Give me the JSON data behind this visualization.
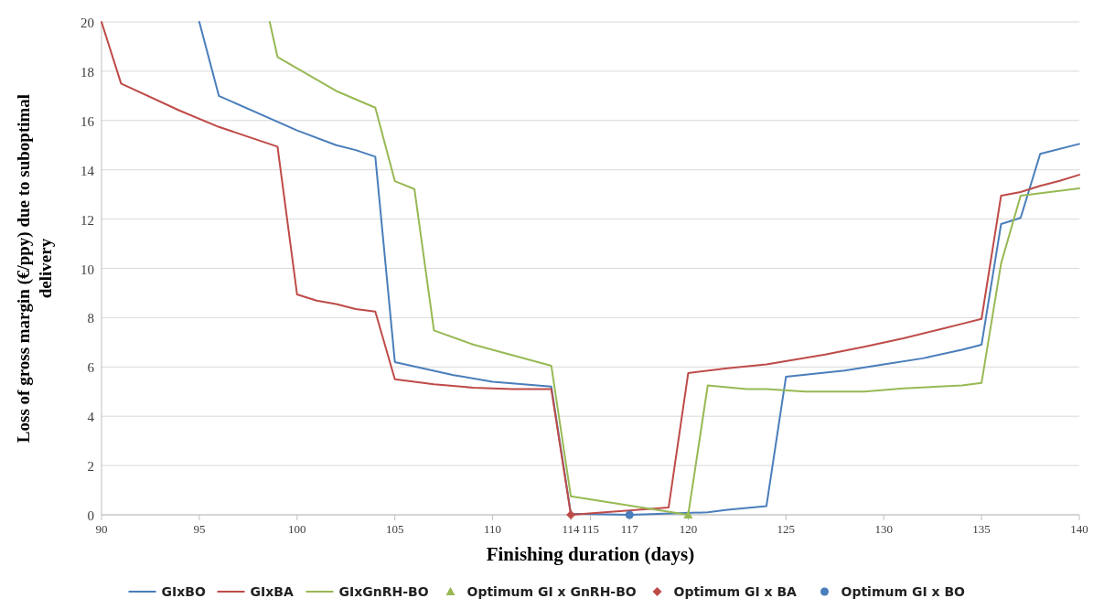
{
  "chart_data": {
    "type": "line",
    "xlabel": "Finishing duration (days)",
    "ylabel": "Loss of gross margin (€/ppy) due to suboptimal delivery",
    "xlim": [
      90,
      140
    ],
    "xticks": [
      90,
      95,
      100,
      105,
      110,
      114,
      115,
      117,
      120,
      125,
      130,
      135,
      140
    ],
    "ylim": [
      0,
      20
    ],
    "yticks": [
      0,
      2,
      4,
      6,
      8,
      10,
      12,
      14,
      16,
      18,
      20
    ],
    "grid": "y",
    "legend": "bottom",
    "line_style": "solid",
    "series": [
      {
        "name": "GIxBO",
        "color": "#4a7ebb",
        "marker": "none",
        "x": [
          95,
          96,
          100,
          102,
          103,
          104,
          105,
          108,
          110,
          113,
          114,
          117,
          121,
          122,
          124,
          125,
          128,
          130,
          132,
          134,
          135,
          136,
          137,
          138,
          140
        ],
        "values": [
          20,
          17,
          15.6,
          15.0,
          14.8,
          14.53,
          6.2,
          5.67,
          5.4,
          5.2,
          0.05,
          0,
          0.1,
          0.2,
          0.35,
          5.6,
          5.85,
          6.1,
          6.35,
          6.7,
          6.9,
          11.8,
          12.05,
          14.65,
          15.05
        ]
      },
      {
        "name": "GIxBA",
        "color": "#be4b48",
        "marker": "none",
        "x": [
          90,
          91,
          94,
          96,
          99,
          100,
          101,
          102,
          103,
          104,
          105,
          107,
          109,
          111,
          113,
          114,
          119,
          120,
          122,
          124,
          127,
          129,
          131,
          133,
          134,
          135,
          136,
          137,
          138,
          139,
          140
        ],
        "values": [
          20,
          17.5,
          16.4,
          15.74,
          14.94,
          8.94,
          8.69,
          8.55,
          8.35,
          8.25,
          5.5,
          5.3,
          5.16,
          5.1,
          5.1,
          0,
          0.3,
          5.75,
          5.95,
          6.1,
          6.5,
          6.82,
          7.16,
          7.55,
          7.75,
          7.95,
          12.95,
          13.1,
          13.35,
          13.55,
          13.8
        ]
      },
      {
        "name": "GIxGnRH-BO",
        "color": "#98b954",
        "marker": "none",
        "x": [
          98.6,
          99,
          102,
          104,
          105,
          106,
          107,
          109,
          113,
          114,
          120,
          121,
          123,
          124,
          126,
          129,
          131,
          134,
          135,
          136,
          137,
          140
        ],
        "values": [
          20,
          18.58,
          17.2,
          16.52,
          13.54,
          13.22,
          7.48,
          6.91,
          6.05,
          0.75,
          0,
          5.25,
          5.1,
          5.1,
          5.0,
          5.0,
          5.13,
          5.25,
          5.35,
          10.2,
          12.95,
          13.25
        ]
      },
      {
        "name": "Optimum GI x GnRH-BO",
        "type": "scatter",
        "color": "#98b954",
        "marker": "triangle",
        "x": [
          120
        ],
        "values": [
          0
        ]
      },
      {
        "name": "Optimum GI x BA",
        "type": "scatter",
        "color": "#be4b48",
        "marker": "diamond",
        "x": [
          114
        ],
        "values": [
          0
        ]
      },
      {
        "name": "Optimum GI x BO",
        "type": "scatter",
        "color": "#4a7ebb",
        "marker": "circle",
        "x": [
          117
        ],
        "values": [
          0
        ]
      }
    ]
  }
}
